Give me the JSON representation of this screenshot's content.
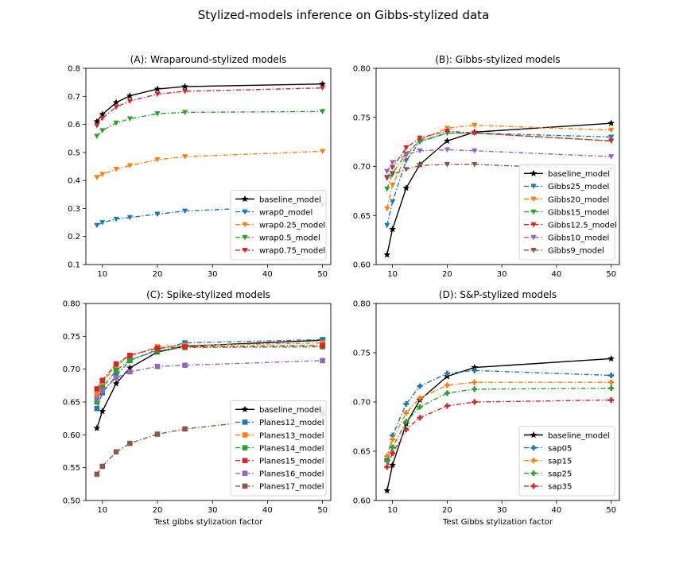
{
  "suptitle": "Stylized-models inference on Gibbs-stylized data",
  "chart_data": [
    {
      "panel": "A",
      "type": "line",
      "title": "(A): Wraparound-stylized models",
      "xlabel": "",
      "ylabel": "",
      "x": [
        9,
        10,
        12.5,
        15,
        20,
        25,
        50
      ],
      "xlim": [
        7,
        51.5
      ],
      "ylim": [
        0.1,
        0.8
      ],
      "xticks": [
        10,
        20,
        30,
        40,
        50
      ],
      "yticks": [
        0.1,
        0.2,
        0.3,
        0.4,
        0.5,
        0.6,
        0.7,
        0.8
      ],
      "ytick_labels": [
        "0.1",
        "0.2",
        "0.3",
        "0.4",
        "0.5",
        "0.6",
        "0.7",
        "0.8"
      ],
      "grid": false,
      "legend_position": "lower-right",
      "series": [
        {
          "name": "baseline_model",
          "color": "#000000",
          "style": "solid",
          "marker": "star",
          "values": [
            0.61,
            0.636,
            0.678,
            0.702,
            0.726,
            0.735,
            0.744
          ]
        },
        {
          "name": "wrap0_model",
          "color": "#1f77b4",
          "style": "dashdot",
          "marker": "tri-down",
          "values": [
            0.24,
            0.25,
            0.262,
            0.268,
            0.28,
            0.291,
            0.312
          ]
        },
        {
          "name": "wrap0.25_model",
          "color": "#ff7f0e",
          "style": "dashdot",
          "marker": "tri-down",
          "values": [
            0.411,
            0.422,
            0.44,
            0.453,
            0.474,
            0.485,
            0.504
          ]
        },
        {
          "name": "wrap0.5_model",
          "color": "#2ca02c",
          "style": "dashdot",
          "marker": "tri-down",
          "values": [
            0.558,
            0.578,
            0.605,
            0.62,
            0.638,
            0.643,
            0.646
          ]
        },
        {
          "name": "wrap0.75_model",
          "color": "#d62728",
          "style": "dashdot",
          "marker": "tri-down",
          "values": [
            0.596,
            0.622,
            0.662,
            0.683,
            0.708,
            0.718,
            0.73
          ]
        }
      ]
    },
    {
      "panel": "B",
      "type": "line",
      "title": "(B): Gibbs-stylized models",
      "xlabel": "",
      "ylabel": "",
      "x": [
        9,
        10,
        12.5,
        15,
        20,
        25,
        50
      ],
      "xlim": [
        7,
        51.5
      ],
      "ylim": [
        0.6,
        0.8
      ],
      "xticks": [
        10,
        20,
        30,
        40,
        50
      ],
      "yticks": [
        0.6,
        0.65,
        0.7,
        0.75,
        0.8
      ],
      "ytick_labels": [
        "0.60",
        "0.65",
        "0.70",
        "0.75",
        "0.80"
      ],
      "grid": false,
      "legend_position": "lower-right",
      "series": [
        {
          "name": "baseline_model",
          "color": "#000000",
          "style": "solid",
          "marker": "star",
          "values": [
            0.61,
            0.636,
            0.678,
            0.702,
            0.726,
            0.735,
            0.744
          ]
        },
        {
          "name": "Gibbs25_model",
          "color": "#1f77b4",
          "style": "dashdot",
          "marker": "tri-down",
          "values": [
            0.64,
            0.664,
            0.706,
            0.725,
            0.734,
            0.734,
            0.73
          ]
        },
        {
          "name": "Gibbs20_model",
          "color": "#ff7f0e",
          "style": "dashdot",
          "marker": "tri-down",
          "values": [
            0.657,
            0.681,
            0.711,
            0.727,
            0.739,
            0.742,
            0.737
          ]
        },
        {
          "name": "Gibbs15_model",
          "color": "#2ca02c",
          "style": "dashdot",
          "marker": "tri-down",
          "values": [
            0.677,
            0.693,
            0.713,
            0.726,
            0.734,
            0.734,
            0.726
          ]
        },
        {
          "name": "Gibbs12.5_model",
          "color": "#d62728",
          "style": "dashdot",
          "marker": "tri-down",
          "values": [
            0.688,
            0.699,
            0.719,
            0.729,
            0.736,
            0.734,
            0.726
          ]
        },
        {
          "name": "Gibbs10_model",
          "color": "#9467bd",
          "style": "dashdot",
          "marker": "tri-down",
          "values": [
            0.695,
            0.704,
            0.712,
            0.716,
            0.717,
            0.716,
            0.71
          ]
        },
        {
          "name": "Gibbs9_model",
          "color": "#8c564b",
          "style": "dashdot",
          "marker": "tri-down",
          "values": [
            0.689,
            0.692,
            0.697,
            0.701,
            0.702,
            0.702,
            0.697
          ]
        }
      ]
    },
    {
      "panel": "C",
      "type": "line",
      "title": "(C): Spike-stylized models",
      "xlabel": "Test gibbs stylization factor",
      "ylabel": "",
      "x": [
        9,
        10,
        12.5,
        15,
        20,
        25,
        50
      ],
      "xlim": [
        7,
        51.5
      ],
      "ylim": [
        0.5,
        0.8
      ],
      "xticks": [
        10,
        20,
        30,
        40,
        50
      ],
      "yticks": [
        0.5,
        0.55,
        0.6,
        0.65,
        0.7,
        0.75,
        0.8
      ],
      "ytick_labels": [
        "0.50",
        "0.55",
        "0.60",
        "0.65",
        "0.70",
        "0.75",
        "0.80"
      ],
      "grid": false,
      "legend_position": "lower-right",
      "series": [
        {
          "name": "baseline_model",
          "color": "#000000",
          "style": "solid",
          "marker": "star",
          "values": [
            0.61,
            0.636,
            0.678,
            0.702,
            0.726,
            0.735,
            0.744
          ]
        },
        {
          "name": "Planes12_model",
          "color": "#1f77b4",
          "style": "dashdot",
          "marker": "square",
          "values": [
            0.64,
            0.664,
            0.69,
            0.713,
            0.73,
            0.74,
            0.745
          ]
        },
        {
          "name": "Planes13_model",
          "color": "#ff7f0e",
          "style": "dashdot",
          "marker": "square",
          "values": [
            0.662,
            0.68,
            0.705,
            0.72,
            0.734,
            0.736,
            0.74
          ]
        },
        {
          "name": "Planes14_model",
          "color": "#2ca02c",
          "style": "dashdot",
          "marker": "square",
          "values": [
            0.65,
            0.672,
            0.698,
            0.714,
            0.728,
            0.733,
            0.734
          ]
        },
        {
          "name": "Planes15_model",
          "color": "#d62728",
          "style": "dashdot",
          "marker": "square",
          "values": [
            0.67,
            0.683,
            0.708,
            0.721,
            0.732,
            0.734,
            0.736
          ]
        },
        {
          "name": "Planes16_model",
          "color": "#9467bd",
          "style": "dashdot",
          "marker": "square",
          "values": [
            0.655,
            0.667,
            0.687,
            0.696,
            0.704,
            0.706,
            0.713
          ]
        },
        {
          "name": "Planes17_model",
          "color": "#8c564b",
          "style": "dashdot",
          "marker": "square",
          "values": [
            0.54,
            0.552,
            0.574,
            0.587,
            0.601,
            0.609,
            0.632
          ]
        }
      ]
    },
    {
      "panel": "D",
      "type": "line",
      "title": "(D): S&P-stylized models",
      "xlabel": "Test Gibbs stylization factor",
      "ylabel": "",
      "x": [
        9,
        10,
        12.5,
        15,
        20,
        25,
        50
      ],
      "xlim": [
        7,
        51.5
      ],
      "ylim": [
        0.6,
        0.8
      ],
      "xticks": [
        10,
        20,
        30,
        40,
        50
      ],
      "yticks": [
        0.6,
        0.65,
        0.7,
        0.75,
        0.8
      ],
      "ytick_labels": [
        "0.60",
        "0.65",
        "0.70",
        "0.75",
        "0.80"
      ],
      "grid": false,
      "legend_position": "lower-right",
      "series": [
        {
          "name": "baseline_model",
          "color": "#000000",
          "style": "solid",
          "marker": "star",
          "values": [
            0.61,
            0.636,
            0.678,
            0.702,
            0.726,
            0.735,
            0.744
          ]
        },
        {
          "name": "sap05",
          "color": "#1f77b4",
          "style": "dashdot",
          "marker": "plus",
          "values": [
            0.642,
            0.666,
            0.698,
            0.716,
            0.729,
            0.732,
            0.727
          ]
        },
        {
          "name": "sap15",
          "color": "#ff7f0e",
          "style": "dashdot",
          "marker": "plus",
          "values": [
            0.645,
            0.662,
            0.689,
            0.704,
            0.717,
            0.72,
            0.72
          ]
        },
        {
          "name": "sap25",
          "color": "#2ca02c",
          "style": "dashdot",
          "marker": "plus",
          "values": [
            0.64,
            0.654,
            0.68,
            0.695,
            0.709,
            0.713,
            0.714
          ]
        },
        {
          "name": "sap35",
          "color": "#d62728",
          "style": "dashdot",
          "marker": "plus",
          "values": [
            0.634,
            0.648,
            0.672,
            0.684,
            0.696,
            0.7,
            0.702
          ]
        }
      ]
    }
  ]
}
